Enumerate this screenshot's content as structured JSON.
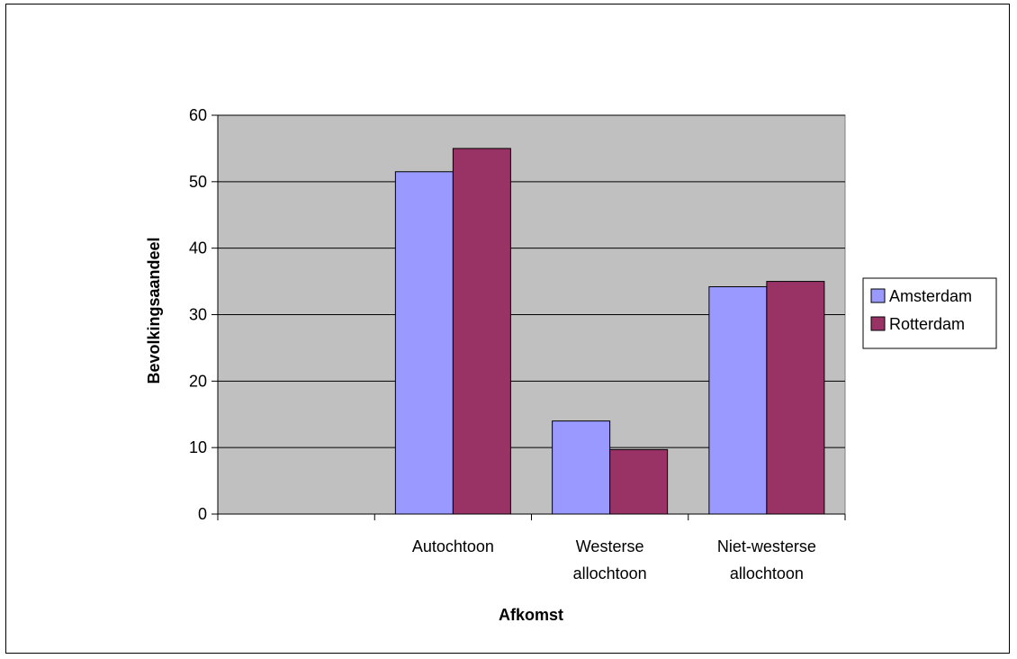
{
  "chart_data": {
    "type": "bar",
    "categories": [
      [
        "",
        ""
      ],
      [
        "Autochtoon"
      ],
      [
        "Westerse",
        "allochtoon"
      ],
      [
        "Niet-westerse",
        "allochtoon"
      ]
    ],
    "series": [
      {
        "name": "Amsterdam",
        "values": [
          null,
          51.5,
          14,
          34.2
        ],
        "color": "#9999ff"
      },
      {
        "name": "Rotterdam",
        "values": [
          null,
          55,
          9.7,
          35
        ],
        "color": "#993366"
      }
    ],
    "xlabel": "Afkomst",
    "ylabel": "Bevolkingsaandeel",
    "ylim": [
      0,
      60
    ],
    "yticks": [
      0,
      10,
      20,
      30,
      40,
      50,
      60
    ],
    "plot_background": "#c0c0c0",
    "grid": true,
    "legend_position": "right"
  }
}
